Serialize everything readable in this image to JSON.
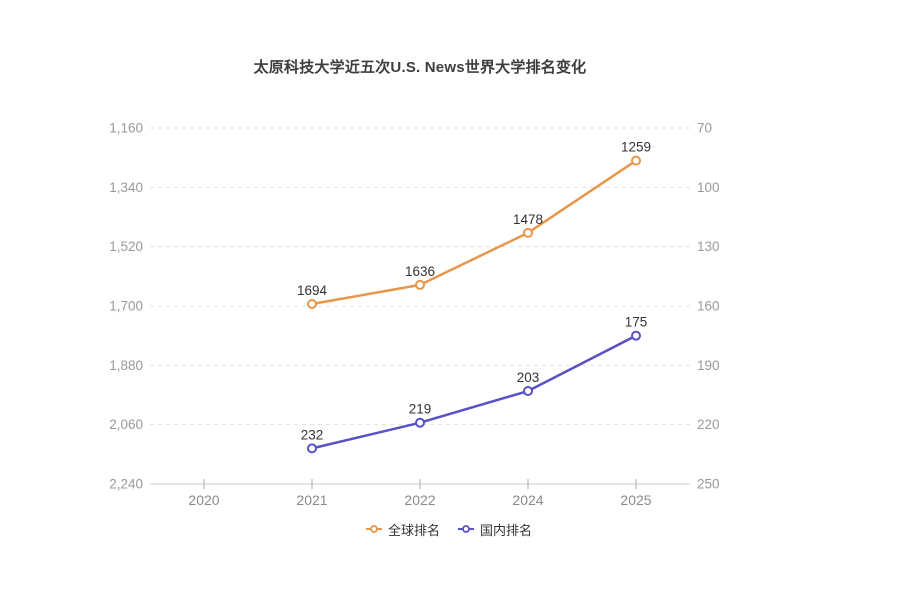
{
  "page": {
    "background": "#ffffff"
  },
  "chart_data": {
    "type": "line",
    "title": "太原科技大学近五次U.S. News世界大学排名变化",
    "categories": [
      "2020",
      "2021",
      "2022",
      "2024",
      "2025"
    ],
    "series": [
      {
        "key": "global-ranking",
        "name": "全球排名",
        "color": "#E8964B",
        "axis": "left",
        "values": [
          null,
          1694,
          1636,
          1478,
          1259
        ]
      },
      {
        "key": "domestic-ranking",
        "name": "国内排名",
        "color": "#5951C4",
        "axis": "right",
        "values": [
          null,
          232,
          219,
          203,
          175
        ]
      }
    ],
    "axes": {
      "left": {
        "ticks": [
          "1,160",
          "1,340",
          "1,520",
          "1,700",
          "1,880",
          "2,060",
          "2,240"
        ],
        "min": 1160,
        "max": 2240,
        "inverted": true
      },
      "right": {
        "ticks": [
          "70",
          "100",
          "130",
          "160",
          "190",
          "220",
          "250"
        ],
        "min": 70,
        "max": 250,
        "inverted": true
      }
    },
    "legend": {
      "position": "bottom"
    },
    "grid": true,
    "marker": "hollow-circle"
  },
  "colors": {
    "title": "#3d3d3d",
    "y_axis_label": "#999999",
    "x_axis_label": "#8a8a8a",
    "data_label": "#333333",
    "gridline": "#e1e1e1",
    "axis_line": "#cccccc",
    "tick": "#aaaaaa",
    "legend_text": "#333333",
    "marker_fill": "#ffffff"
  }
}
